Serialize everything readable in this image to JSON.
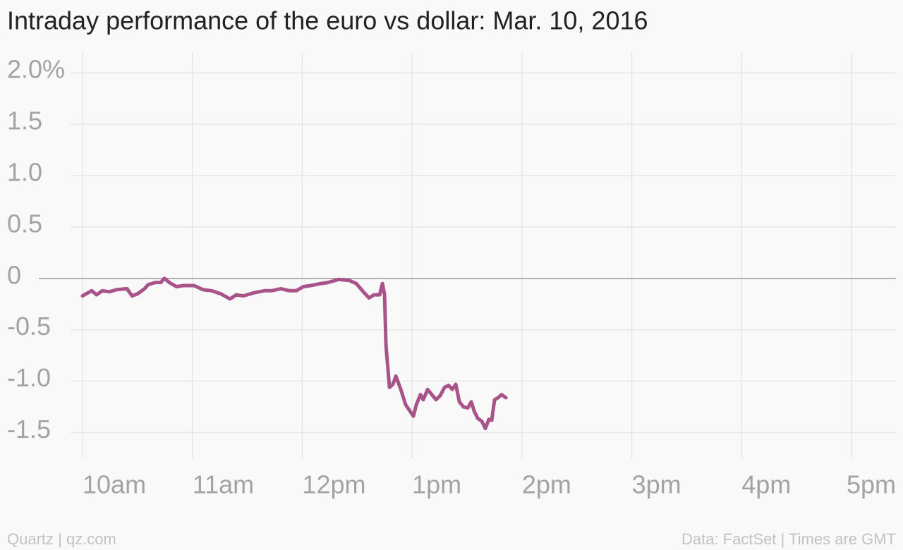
{
  "chart_data": {
    "type": "line",
    "title": "Intraday performance of the euro vs dollar: Mar. 10, 2016",
    "footer_left": "Quartz | qz.com",
    "footer_right": "Data: FactSet | Times are GMT",
    "x": [
      10.0,
      10.051,
      10.083,
      10.128,
      10.18,
      10.244,
      10.308,
      10.405,
      10.45,
      10.501,
      10.565,
      10.597,
      10.662,
      10.713,
      10.745,
      10.79,
      10.854,
      10.918,
      11.015,
      11.098,
      11.175,
      11.259,
      11.342,
      11.4,
      11.464,
      11.561,
      11.657,
      11.721,
      11.805,
      11.882,
      11.946,
      12.01,
      12.075,
      12.171,
      12.235,
      12.331,
      12.428,
      12.492,
      12.556,
      12.608,
      12.653,
      12.704,
      12.73,
      12.749,
      12.762,
      12.794,
      12.826,
      12.852,
      12.897,
      12.942,
      12.974,
      13.012,
      13.038,
      13.076,
      13.102,
      13.141,
      13.179,
      13.218,
      13.256,
      13.295,
      13.333,
      13.365,
      13.398,
      13.43,
      13.468,
      13.507,
      13.539,
      13.565,
      13.597,
      13.635,
      13.667,
      13.699,
      13.725,
      13.751,
      13.783,
      13.815,
      13.854
    ],
    "series": [
      {
        "name": "EUR/USD",
        "color": "#a8548a",
        "values": [
          -0.17,
          -0.14,
          -0.12,
          -0.16,
          -0.12,
          -0.13,
          -0.11,
          -0.1,
          -0.17,
          -0.15,
          -0.1,
          -0.06,
          -0.04,
          -0.04,
          0.0,
          -0.04,
          -0.08,
          -0.07,
          -0.07,
          -0.11,
          -0.12,
          -0.15,
          -0.2,
          -0.16,
          -0.17,
          -0.14,
          -0.12,
          -0.12,
          -0.1,
          -0.12,
          -0.12,
          -0.08,
          -0.07,
          -0.05,
          -0.04,
          -0.01,
          -0.02,
          -0.05,
          -0.13,
          -0.19,
          -0.16,
          -0.16,
          -0.05,
          -0.16,
          -0.65,
          -1.06,
          -1.03,
          -0.95,
          -1.08,
          -1.23,
          -1.28,
          -1.34,
          -1.23,
          -1.13,
          -1.18,
          -1.08,
          -1.13,
          -1.18,
          -1.14,
          -1.06,
          -1.04,
          -1.08,
          -1.03,
          -1.2,
          -1.25,
          -1.26,
          -1.2,
          -1.29,
          -1.36,
          -1.39,
          -1.46,
          -1.37,
          -1.38,
          -1.18,
          -1.16,
          -1.13,
          -1.16
        ]
      }
    ],
    "xlim": [
      10,
      17
    ],
    "xticks": [
      {
        "value": 10,
        "label": "10am"
      },
      {
        "value": 11,
        "label": "11am"
      },
      {
        "value": 12,
        "label": "12pm"
      },
      {
        "value": 13,
        "label": "1pm"
      },
      {
        "value": 14,
        "label": "2pm"
      },
      {
        "value": 15,
        "label": "3pm"
      },
      {
        "value": 16,
        "label": "4pm"
      },
      {
        "value": 17,
        "label": "5pm"
      }
    ],
    "ylim": [
      -1.75,
      2.2
    ],
    "yticks": [
      {
        "value": 2,
        "label": "2.0%"
      },
      1.5,
      {
        "value": 1,
        "label": "1.0"
      },
      0.5,
      0,
      -0.5,
      {
        "value": -1,
        "label": "-1.0"
      },
      -1.5
    ],
    "grid": true
  }
}
